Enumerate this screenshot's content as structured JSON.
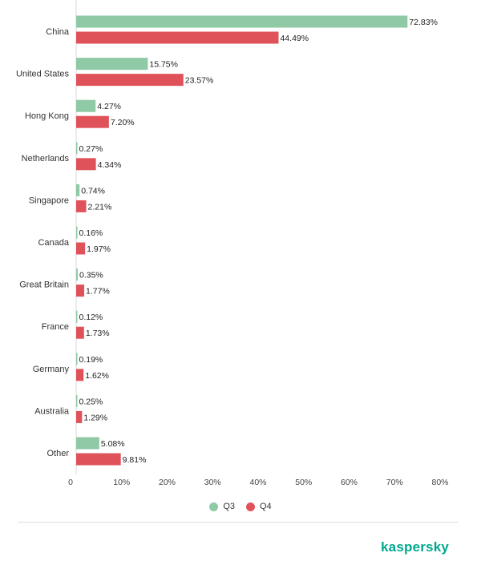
{
  "chart_data": {
    "type": "bar",
    "orientation": "horizontal",
    "categories": [
      "China",
      "United States",
      "Hong Kong",
      "Netherlands",
      "Singapore",
      "Canada",
      "Great Britain",
      "France",
      "Germany",
      "Australia",
      "Other"
    ],
    "series": [
      {
        "name": "Q3",
        "color": "#8fc9a6",
        "values": [
          72.83,
          15.75,
          4.27,
          0.27,
          0.74,
          0.16,
          0.35,
          0.12,
          0.19,
          0.25,
          5.08
        ],
        "labels": [
          "72.83%",
          "15.75%",
          "4.27%",
          "0.27%",
          "0.74%",
          "0.16%",
          "0.35%",
          "0.12%",
          "0.19%",
          "0.25%",
          "5.08%"
        ]
      },
      {
        "name": "Q4",
        "color": "#e0525a",
        "values": [
          44.49,
          23.57,
          7.2,
          4.34,
          2.21,
          1.97,
          1.77,
          1.73,
          1.62,
          1.29,
          9.81
        ],
        "labels": [
          "44.49%",
          "23.57%",
          "7.20%",
          "4.34%",
          "2.21%",
          "1.97%",
          "1.77%",
          "1.73%",
          "1.62%",
          "1.29%",
          "9.81%"
        ]
      }
    ],
    "xlim": [
      0,
      80
    ],
    "xticks": [
      "0",
      "10%",
      "20%",
      "30%",
      "40%",
      "50%",
      "60%",
      "70%",
      "80%"
    ],
    "grid": false,
    "legend_position": "bottom-center",
    "title": "",
    "xlabel": "",
    "ylabel": ""
  },
  "branding": {
    "name": "kaspersky",
    "color": "#00a88e"
  }
}
